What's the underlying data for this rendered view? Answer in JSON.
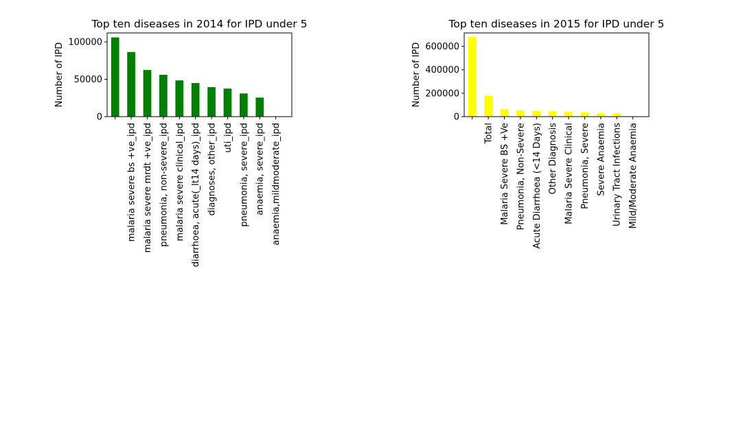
{
  "chart_data": [
    {
      "type": "bar",
      "title": "Top ten diseases in 2014 for IPD under 5",
      "xlabel": "",
      "ylabel": "Number of IPD",
      "ylim": [
        0,
        112000
      ],
      "yticks": [
        0,
        50000,
        100000
      ],
      "bar_color": "#008000",
      "categories": [
        "",
        "malaria  severe bs +ve_ipd",
        "malaria severe mrdt +ve_ipd",
        "pneumonia, non-severe_ipd",
        "malaria severe  clinical_ipd",
        "diarrhoea, acute(_lt14 days)_ipd",
        "diagnoses, other_ipd",
        "uti_ipd",
        "pneumonia, severe_ipd",
        "anaemia, severe_ipd",
        "anaemia,mildmoderate_ipd"
      ],
      "values": [
        106000,
        86500,
        62500,
        56000,
        48500,
        45000,
        39500,
        37500,
        31000,
        25500,
        0
      ]
    },
    {
      "type": "bar",
      "title": "Top ten diseases in 2015 for IPD under 5",
      "xlabel": "",
      "ylabel": "Number of IPD",
      "ylim": [
        0,
        715000
      ],
      "yticks": [
        0,
        200000,
        400000,
        600000
      ],
      "bar_color": "#ffff00",
      "categories": [
        "",
        "Total",
        "Malaria Severe BS +Ve",
        "Pneumonia, Non-Severe",
        "Acute Diarrhoea (<14 Days)",
        "Other Diagnosis",
        "Malaria Severe Clinical",
        "Pneumonia, Severe",
        "Severe Anaemia",
        "Urinary Tract Infections",
        "Mild/Moderate Anaemia"
      ],
      "values": [
        680000,
        180000,
        65000,
        54000,
        48000,
        46000,
        43000,
        37000,
        31000,
        30000,
        0
      ]
    }
  ]
}
